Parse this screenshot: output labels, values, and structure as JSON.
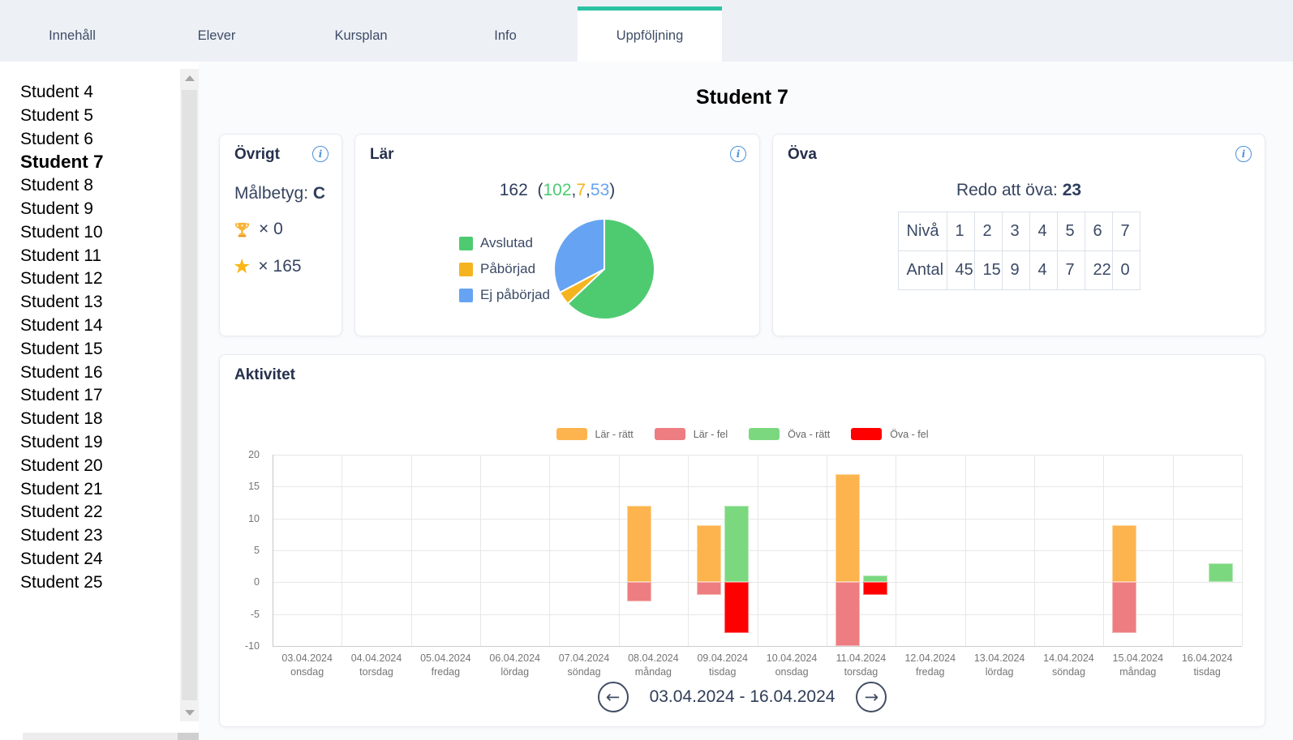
{
  "tabs": [
    {
      "label": "Innehåll",
      "active": false
    },
    {
      "label": "Elever",
      "active": false
    },
    {
      "label": "Kursplan",
      "active": false
    },
    {
      "label": "Info",
      "active": false
    },
    {
      "label": "Uppföljning",
      "active": true
    }
  ],
  "sidebar": {
    "students": [
      "Student 4",
      "Student 5",
      "Student 6",
      "Student 7",
      "Student 8",
      "Student 9",
      "Student 10",
      "Student 11",
      "Student 12",
      "Student 13",
      "Student 14",
      "Student 15",
      "Student 16",
      "Student 17",
      "Student 18",
      "Student 19",
      "Student 20",
      "Student 21",
      "Student 22",
      "Student 23",
      "Student 24",
      "Student 25"
    ],
    "selected": "Student 7"
  },
  "page_title": "Student 7",
  "ovrigt_card": {
    "title": "Övrigt",
    "malbetyg_label": "Målbetyg:",
    "malbetyg_value": "C",
    "trophy_count": "× 0",
    "star_count": "× 165"
  },
  "lar_card": {
    "title": "Lär",
    "total": "162",
    "open_paren": "(",
    "comma": ",",
    "close_paren": ")",
    "avslutad": "102",
    "paborjad": "7",
    "ej_paborjad": "53"
  },
  "ova_card": {
    "title": "Öva",
    "redo_label": "Redo att öva:",
    "redo_value": "23",
    "table": {
      "row_headers": [
        "Nivå",
        "Antal"
      ],
      "levels": [
        "1",
        "2",
        "3",
        "4",
        "5",
        "6",
        "7"
      ],
      "counts": [
        "45",
        "15",
        "9",
        "4",
        "7",
        "22",
        "0"
      ]
    }
  },
  "activity_card": {
    "title": "Aktivitet",
    "nav": {
      "range": "03.04.2024 - 16.04.2024",
      "prev_icon": "←",
      "next_icon": "→"
    }
  },
  "chart_data": [
    {
      "id": "lar-pie",
      "type": "pie",
      "title": "Lär",
      "labels": [
        "Avslutad",
        "Påbörjad",
        "Ej påbörjad"
      ],
      "values": [
        102,
        7,
        53
      ],
      "total": 162,
      "colors": [
        "#4ecb71",
        "#f5b41f",
        "#66a3f2"
      ],
      "legend_position": "left",
      "start_angle_deg": 0,
      "direction": "clockwise"
    },
    {
      "id": "aktivitet-bars",
      "type": "bar",
      "title": "Aktivitet",
      "categories": [
        "03.04.2024",
        "04.04.2024",
        "05.04.2024",
        "06.04.2024",
        "07.04.2024",
        "08.04.2024",
        "09.04.2024",
        "10.04.2024",
        "11.04.2024",
        "12.04.2024",
        "13.04.2024",
        "14.04.2024",
        "15.04.2024",
        "16.04.2024"
      ],
      "category_sublabels": [
        "onsdag",
        "torsdag",
        "fredag",
        "lördag",
        "söndag",
        "måndag",
        "tisdag",
        "onsdag",
        "torsdag",
        "fredag",
        "lördag",
        "söndag",
        "måndag",
        "tisdag"
      ],
      "series": [
        {
          "name": "Lär - rätt",
          "color": "#fdb44e",
          "stack": "lar",
          "values": [
            0,
            0,
            0,
            0,
            0,
            12,
            9,
            0,
            17,
            0,
            0,
            0,
            9,
            0
          ]
        },
        {
          "name": "Lär - fel",
          "color": "#ed7d80",
          "stack": "lar",
          "values": [
            0,
            0,
            0,
            0,
            0,
            -3,
            -2,
            0,
            -10,
            0,
            0,
            0,
            -8,
            0
          ]
        },
        {
          "name": "Öva - rätt",
          "color": "#7cd87f",
          "stack": "ova",
          "values": [
            0,
            0,
            0,
            0,
            0,
            0,
            12,
            0,
            1,
            0,
            0,
            0,
            0,
            3
          ]
        },
        {
          "name": "Öva - fel",
          "color": "#ff0000",
          "stack": "ova",
          "values": [
            0,
            0,
            0,
            0,
            0,
            0,
            -8,
            0,
            -2,
            0,
            0,
            0,
            0,
            0
          ]
        }
      ],
      "ylim": [
        -10,
        20
      ],
      "ytick_step": 5,
      "grid": true,
      "legend_position": "top"
    }
  ]
}
